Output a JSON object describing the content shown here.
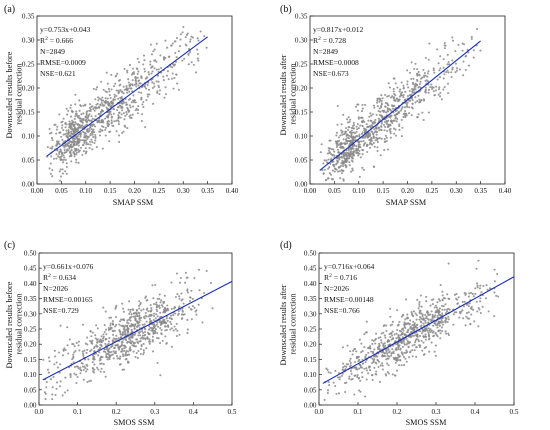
{
  "colors": {
    "point": "#8a8a8a",
    "fit_line": "#1a2fb8",
    "axis": "#222222"
  },
  "chart_data": [
    {
      "type": "scatter",
      "panel": "(a)",
      "xlabel": "SMAP SSM",
      "ylabel": [
        "Downscaled results before",
        "residual correction"
      ],
      "xlim": [
        0,
        0.4
      ],
      "ylim": [
        0,
        0.35
      ],
      "xticks": [
        0,
        0.05,
        0.1,
        0.15,
        0.2,
        0.25,
        0.3,
        0.35,
        0.4
      ],
      "xtick_labels": [
        "0.00",
        "0.05",
        "0.10",
        "0.15",
        "0.20",
        "0.25",
        "0.30",
        "0.35",
        "0.40"
      ],
      "yticks": [
        0,
        0.05,
        0.1,
        0.15,
        0.2,
        0.25,
        0.3,
        0.35
      ],
      "ytick_labels": [
        "0.00",
        "0.05",
        "0.10",
        "0.15",
        "0.20",
        "0.25",
        "0.30",
        "0.35"
      ],
      "fit": {
        "slope": 0.753,
        "intercept": 0.043,
        "x_range": [
          0.02,
          0.35
        ]
      },
      "stats": {
        "equation": "y=0.753x+0.043",
        "r2": "0.666",
        "n": "N=2849",
        "rmse": "RMSE=0.0009",
        "nse": "NSE=0.621"
      },
      "point_cloud": {
        "n_shown": 900,
        "x_range": [
          0.02,
          0.35
        ],
        "x_mode": 0.09,
        "noise_sd": 0.028
      }
    },
    {
      "type": "scatter",
      "panel": "(b)",
      "xlabel": "SMAP SSM",
      "ylabel": [
        "Downscaled results after",
        "residual correction"
      ],
      "xlim": [
        0,
        0.4
      ],
      "ylim": [
        0,
        0.35
      ],
      "xticks": [
        0,
        0.05,
        0.1,
        0.15,
        0.2,
        0.25,
        0.3,
        0.35,
        0.4
      ],
      "xtick_labels": [
        "0.00",
        "0.05",
        "0.10",
        "0.15",
        "0.20",
        "0.25",
        "0.30",
        "0.35",
        "0.40"
      ],
      "yticks": [
        0,
        0.05,
        0.1,
        0.15,
        0.2,
        0.25,
        0.3,
        0.35
      ],
      "ytick_labels": [
        "0.00",
        "0.05",
        "0.10",
        "0.15",
        "0.20",
        "0.25",
        "0.30",
        "0.35"
      ],
      "fit": {
        "slope": 0.817,
        "intercept": 0.012,
        "x_range": [
          0.02,
          0.35
        ]
      },
      "stats": {
        "equation": "y=0.817x+0.012",
        "r2": "0.728",
        "n": "N=2849",
        "rmse": "RMSE=0.0008",
        "nse": "NSE=0.673"
      },
      "point_cloud": {
        "n_shown": 900,
        "x_range": [
          0.02,
          0.35
        ],
        "x_mode": 0.09,
        "noise_sd": 0.026
      }
    },
    {
      "type": "scatter",
      "panel": "(c)",
      "xlabel": "SMOS SSM",
      "ylabel": [
        "Downscaled results before",
        "residual correction"
      ],
      "xlim": [
        0,
        0.5
      ],
      "ylim": [
        0,
        0.5
      ],
      "xticks": [
        0,
        0.1,
        0.2,
        0.3,
        0.4,
        0.5
      ],
      "xtick_labels": [
        "0.0",
        "0.1",
        "0.2",
        "0.3",
        "0.4",
        "0.5"
      ],
      "yticks": [
        0,
        0.05,
        0.1,
        0.15,
        0.2,
        0.25,
        0.3,
        0.35,
        0.4,
        0.45,
        0.5
      ],
      "ytick_labels": [
        "0.00",
        "0.05",
        "0.10",
        "0.15",
        "0.20",
        "0.25",
        "0.30",
        "0.35",
        "0.40",
        "0.45",
        "0.50"
      ],
      "fit": {
        "slope": 0.661,
        "intercept": 0.076,
        "x_range": [
          0.01,
          0.5
        ]
      },
      "stats": {
        "equation": "y=0.661x+0.076",
        "r2": "0.634",
        "n": "N=2026",
        "rmse": "RMSE=0.00165",
        "nse": "NSE=0.729"
      },
      "point_cloud": {
        "n_shown": 800,
        "x_range": [
          0.01,
          0.46
        ],
        "x_mode": 0.2,
        "noise_sd": 0.045
      }
    },
    {
      "type": "scatter",
      "panel": "(d)",
      "xlabel": "SMOS SSM",
      "ylabel": [
        "Downscaled results after",
        "residual correction"
      ],
      "xlim": [
        0,
        0.5
      ],
      "ylim": [
        0,
        0.5
      ],
      "xticks": [
        0,
        0.1,
        0.2,
        0.3,
        0.4,
        0.5
      ],
      "xtick_labels": [
        "0.0",
        "0.1",
        "0.2",
        "0.3",
        "0.4",
        "0.5"
      ],
      "yticks": [
        0,
        0.05,
        0.1,
        0.15,
        0.2,
        0.25,
        0.3,
        0.35,
        0.4,
        0.45,
        0.5
      ],
      "ytick_labels": [
        "0.00",
        "0.05",
        "0.10",
        "0.15",
        "0.20",
        "0.25",
        "0.30",
        "0.35",
        "0.40",
        "0.45",
        "0.50"
      ],
      "fit": {
        "slope": 0.716,
        "intercept": 0.064,
        "x_range": [
          0.01,
          0.5
        ]
      },
      "stats": {
        "equation": "y=0.716x+0.064",
        "r2": "0.716",
        "n": "N=2026",
        "rmse": "RMSE=0.00148",
        "nse": "NSE=0.766"
      },
      "point_cloud": {
        "n_shown": 800,
        "x_range": [
          0.01,
          0.46
        ],
        "x_mode": 0.2,
        "noise_sd": 0.04
      }
    }
  ]
}
